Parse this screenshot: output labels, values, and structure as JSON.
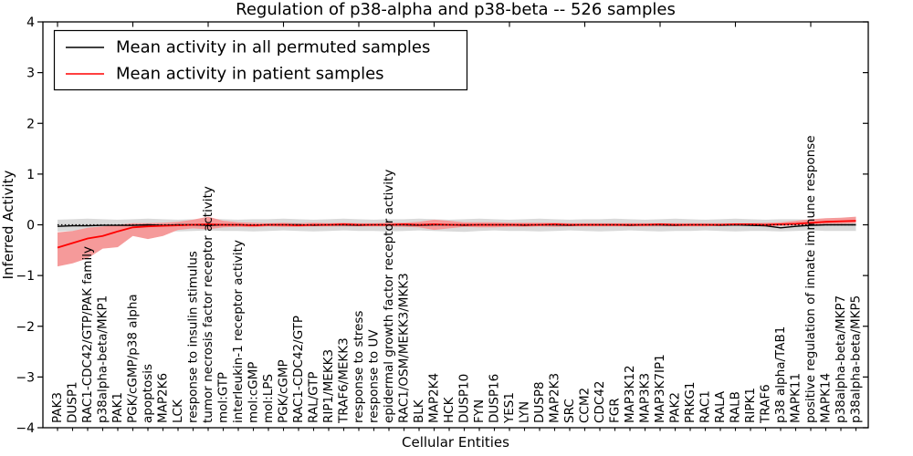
{
  "chart_data": {
    "type": "line",
    "title": "Regulation of p38-alpha and p38-beta -- 526 samples",
    "xlabel": "Cellular Entities",
    "ylabel": "Inferred Activity",
    "ylim": [
      -4,
      4
    ],
    "yticks": [
      4,
      3,
      2,
      1,
      0,
      -1,
      -2,
      -3,
      -4
    ],
    "ytick_labels": [
      "4",
      "3",
      "2",
      "1",
      "0",
      "−1",
      "−2",
      "−3",
      "−4"
    ],
    "grid": false,
    "legend_position": "upper left",
    "zero_line": {
      "style": "dotted",
      "color": "#000000"
    },
    "categories": [
      "PAK3",
      "DUSP1",
      "RAC1-CDC42/GTP/PAK family",
      "p38alpha-beta/MKP1",
      "PAK1",
      "PGK/cGMP/p38 alpha",
      "apoptosis",
      "MAP2K6",
      "LCK",
      "response to insulin stimulus",
      "tumor necrosis factor receptor activity",
      "mol:GTP",
      "interleukin-1 receptor activity",
      "mol:cGMP",
      "mol:LPS",
      "PGK/cGMP",
      "RAC1-CDC42/GTP",
      "RAL/GTP",
      "RIP1/MEKK3",
      "TRAF6/MEKK3",
      "response to stress",
      "response to UV",
      "epidermal growth factor receptor activity",
      "RAC1/OSM/MEKK3/MKK3",
      "BLK",
      "MAP2K4",
      "HCK",
      "DUSP10",
      "FYN",
      "DUSP16",
      "YES1",
      "LYN",
      "DUSP8",
      "MAP2K3",
      "SRC",
      "CCM2",
      "CDC42",
      "FGR",
      "MAP3K12",
      "MAP3K3",
      "MAP3K7IP1",
      "PAK2",
      "PRKG1",
      "RAC1",
      "RALA",
      "RALB",
      "RIPK1",
      "TRAF6",
      "p38 alpha/TAB1",
      "MAPK11",
      "positive regulation of innate immune response",
      "MAPK14",
      "p38alpha-beta/MKP7",
      "p38alpha-beta/MKP5"
    ],
    "series": [
      {
        "id": "permuted",
        "name": "Mean activity in all permuted samples",
        "color": "#000000",
        "line_width": 1.4,
        "band_color": "#d9d9d9",
        "values": [
          -0.03,
          -0.02,
          -0.02,
          -0.01,
          -0.01,
          -0.01,
          0.0,
          -0.01,
          0.0,
          0.0,
          -0.01,
          0.0,
          0.0,
          -0.01,
          0.0,
          0.0,
          0.0,
          -0.01,
          0.0,
          0.0,
          -0.01,
          0.0,
          0.0,
          0.0,
          -0.01,
          0.0,
          0.0,
          -0.01,
          0.0,
          0.0,
          0.0,
          -0.01,
          0.0,
          0.0,
          -0.01,
          0.0,
          0.0,
          0.0,
          -0.01,
          0.0,
          0.0,
          -0.01,
          0.0,
          0.0,
          -0.01,
          0.0,
          -0.01,
          -0.02,
          -0.06,
          -0.03,
          -0.01,
          0.0,
          0.0,
          0.0
        ],
        "band_lo": [
          -0.13,
          -0.12,
          -0.11,
          -0.12,
          -0.13,
          -0.12,
          -0.11,
          -0.12,
          -0.13,
          -0.12,
          -0.11,
          -0.12,
          -0.12,
          -0.13,
          -0.12,
          -0.11,
          -0.12,
          -0.13,
          -0.12,
          -0.11,
          -0.12,
          -0.12,
          -0.13,
          -0.12,
          -0.11,
          -0.12,
          -0.13,
          -0.14,
          -0.12,
          -0.11,
          -0.12,
          -0.12,
          -0.13,
          -0.12,
          -0.11,
          -0.12,
          -0.13,
          -0.12,
          -0.11,
          -0.12,
          -0.13,
          -0.12,
          -0.12,
          -0.11,
          -0.12,
          -0.13,
          -0.12,
          -0.12,
          -0.13,
          -0.12,
          -0.11,
          -0.12,
          -0.12,
          -0.12
        ],
        "band_hi": [
          0.1,
          0.11,
          0.12,
          0.11,
          0.1,
          0.11,
          0.12,
          0.11,
          0.1,
          0.11,
          0.12,
          0.11,
          0.1,
          0.11,
          0.11,
          0.12,
          0.11,
          0.1,
          0.11,
          0.12,
          0.11,
          0.1,
          0.11,
          0.11,
          0.12,
          0.11,
          0.1,
          0.11,
          0.12,
          0.11,
          0.1,
          0.11,
          0.12,
          0.11,
          0.1,
          0.11,
          0.11,
          0.12,
          0.11,
          0.1,
          0.11,
          0.12,
          0.11,
          0.1,
          0.11,
          0.12,
          0.11,
          0.1,
          0.11,
          0.11,
          0.1,
          0.11,
          0.11,
          0.1
        ]
      },
      {
        "id": "patient",
        "name": "Mean activity in patient samples",
        "color": "#ff0000",
        "line_width": 1.8,
        "band_color": "#f59a9a",
        "values": [
          -0.45,
          -0.36,
          -0.27,
          -0.22,
          -0.13,
          -0.05,
          -0.03,
          -0.02,
          -0.01,
          0.0,
          0.01,
          0.0,
          0.0,
          -0.01,
          0.0,
          0.0,
          -0.01,
          0.0,
          0.0,
          0.01,
          0.0,
          0.0,
          0.0,
          0.01,
          0.0,
          0.01,
          0.0,
          0.0,
          0.0,
          0.0,
          0.0,
          0.0,
          0.0,
          0.01,
          0.0,
          0.0,
          0.0,
          0.0,
          0.0,
          0.0,
          0.01,
          0.0,
          0.0,
          0.0,
          0.0,
          0.01,
          0.01,
          0.0,
          0.01,
          0.02,
          0.04,
          0.06,
          0.07,
          0.08
        ],
        "band_lo": [
          -0.82,
          -0.76,
          -0.66,
          -0.47,
          -0.44,
          -0.22,
          -0.28,
          -0.22,
          -0.1,
          -0.07,
          -0.09,
          -0.05,
          -0.04,
          -0.05,
          -0.03,
          -0.04,
          -0.04,
          -0.03,
          -0.03,
          -0.03,
          -0.03,
          -0.03,
          -0.03,
          -0.04,
          -0.05,
          -0.1,
          -0.07,
          -0.04,
          -0.05,
          -0.05,
          -0.04,
          -0.04,
          -0.03,
          -0.04,
          -0.03,
          -0.03,
          -0.03,
          -0.03,
          -0.03,
          -0.03,
          -0.03,
          -0.03,
          -0.03,
          -0.03,
          -0.02,
          -0.02,
          -0.02,
          -0.03,
          -0.02,
          -0.01,
          0.0,
          0.02,
          0.02,
          0.03
        ],
        "band_hi": [
          -0.15,
          -0.12,
          -0.06,
          -0.03,
          0.0,
          0.03,
          0.03,
          0.04,
          0.06,
          0.1,
          0.16,
          0.08,
          0.05,
          0.04,
          0.03,
          0.04,
          0.03,
          0.04,
          0.03,
          0.04,
          0.03,
          0.03,
          0.04,
          0.04,
          0.06,
          0.1,
          0.08,
          0.05,
          0.05,
          0.05,
          0.04,
          0.04,
          0.04,
          0.04,
          0.03,
          0.03,
          0.03,
          0.03,
          0.03,
          0.03,
          0.03,
          0.03,
          0.03,
          0.03,
          0.03,
          0.03,
          0.03,
          0.04,
          0.05,
          0.08,
          0.11,
          0.13,
          0.14,
          0.16
        ]
      }
    ]
  }
}
